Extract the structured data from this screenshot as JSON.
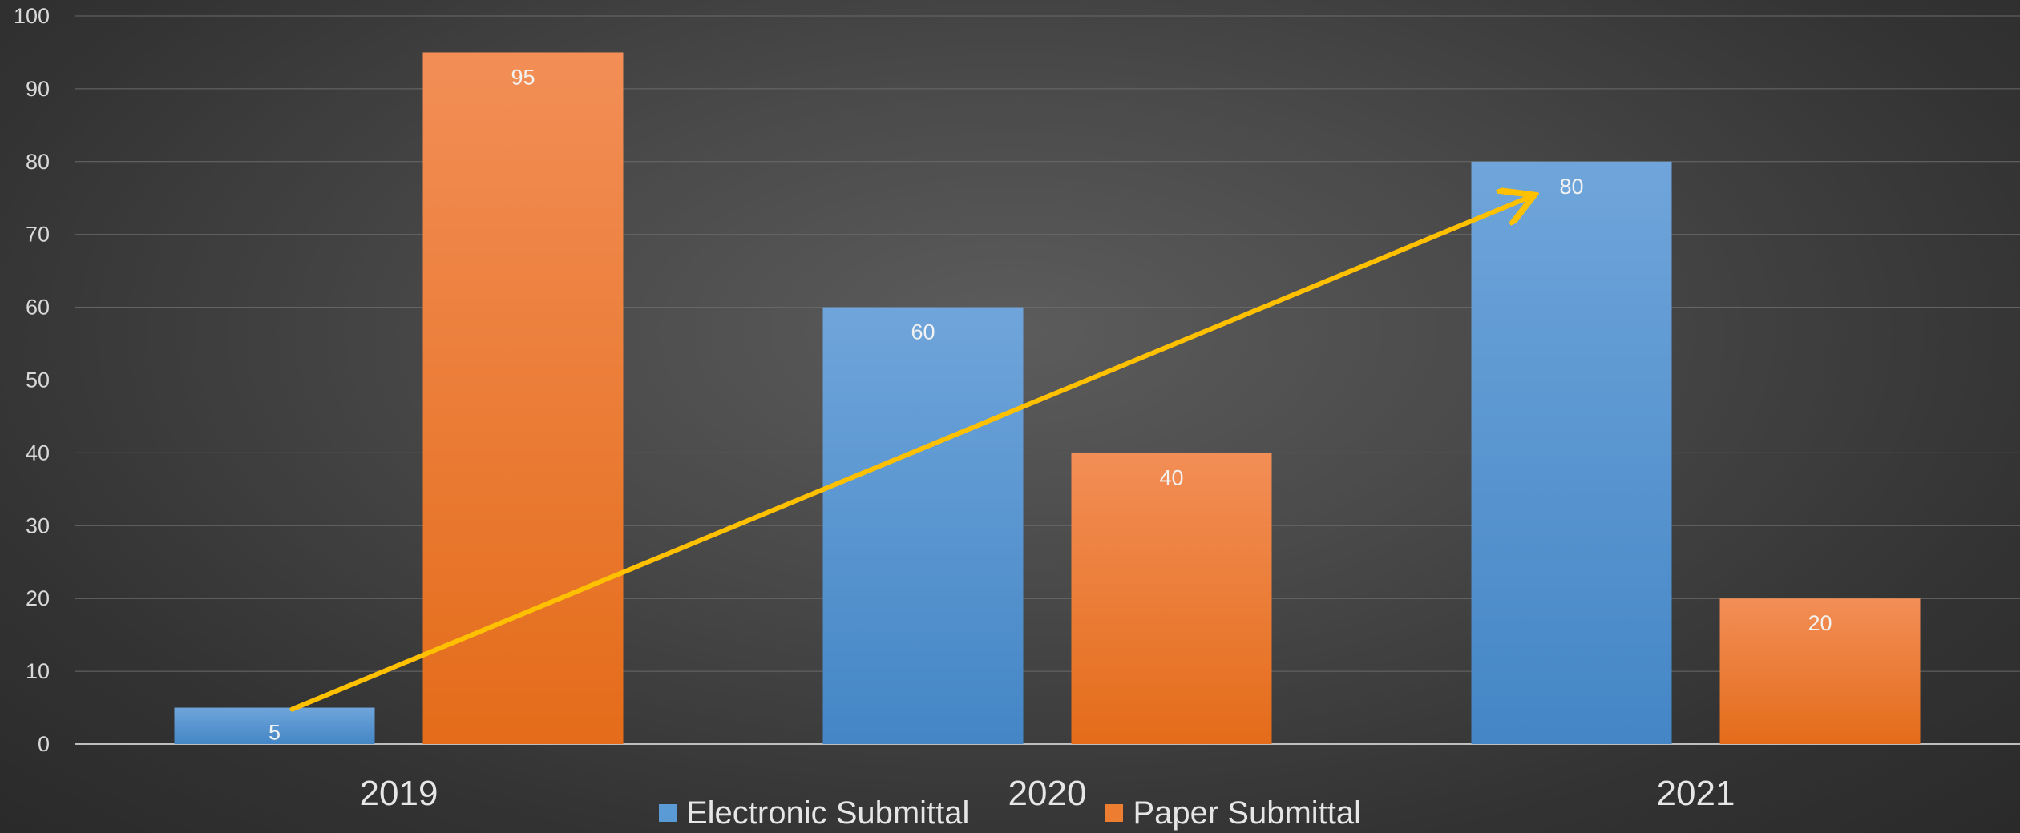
{
  "chart_data": {
    "type": "bar",
    "categories": [
      "2019",
      "2020",
      "2021"
    ],
    "series": [
      {
        "name": "Electronic Submittal",
        "values": [
          5,
          60,
          80
        ],
        "color": "#5b9bd5"
      },
      {
        "name": "Paper Submittal",
        "values": [
          95,
          40,
          20
        ],
        "color": "#ed7d31"
      }
    ],
    "ylim": [
      0,
      100
    ],
    "yticks": [
      0,
      10,
      20,
      30,
      40,
      50,
      60,
      70,
      80,
      90,
      100
    ],
    "grid": true,
    "data_labels": true,
    "legend_position": "bottom",
    "annotation": {
      "type": "arrow",
      "color": "#ffc000",
      "from_value": 5,
      "to_value": 80
    },
    "title": "",
    "xlabel": "",
    "ylabel": ""
  }
}
